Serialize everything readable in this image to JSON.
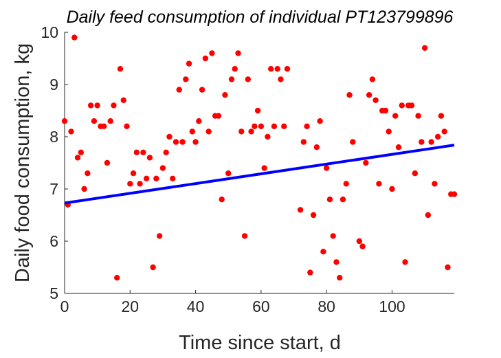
{
  "chart_data": {
    "type": "scatter",
    "title": "Daily feed consumption of individual PT123799896",
    "xlabel": "Time since start, d",
    "ylabel": "Daily food consumption, kg",
    "xlim": [
      0,
      119
    ],
    "ylim": [
      5,
      10
    ],
    "xticks": [
      0,
      20,
      40,
      60,
      80,
      100
    ],
    "yticks": [
      5,
      6,
      7,
      8,
      9,
      10
    ],
    "grid": false,
    "colors": {
      "points": "#ff0000",
      "trend": "#0000ff",
      "axes": "#262626"
    },
    "series": [
      {
        "type": "scatter",
        "x": [
          0,
          1,
          2,
          3,
          4,
          5,
          6,
          7,
          8,
          9,
          10,
          11,
          12,
          13,
          14,
          15,
          16,
          17,
          18,
          19,
          20,
          21,
          22,
          23,
          24,
          25,
          26,
          27,
          28,
          29,
          30,
          31,
          32,
          33,
          34,
          35,
          36,
          37,
          38,
          39,
          40,
          41,
          42,
          43,
          44,
          45,
          46,
          47,
          48,
          49,
          50,
          51,
          52,
          53,
          54,
          55,
          56,
          57,
          58,
          59,
          60,
          61,
          62,
          63,
          64,
          65,
          66,
          67,
          68,
          72,
          73,
          74,
          75,
          76,
          77,
          78,
          79,
          80,
          81,
          82,
          83,
          84,
          85,
          86,
          87,
          88,
          90,
          91,
          92,
          93,
          94,
          95,
          96,
          97,
          98,
          99,
          100,
          101,
          102,
          103,
          104,
          105,
          106,
          107,
          108,
          109,
          110,
          111,
          112,
          113,
          114,
          115,
          116,
          117,
          118,
          119
        ],
        "y": [
          8.3,
          6.7,
          8.1,
          9.9,
          7.6,
          7.7,
          7.0,
          7.3,
          8.6,
          8.3,
          8.6,
          8.2,
          8.2,
          7.5,
          8.3,
          8.6,
          5.3,
          9.3,
          8.7,
          8.2,
          7.1,
          7.3,
          7.7,
          7.1,
          7.7,
          7.2,
          7.6,
          5.5,
          7.2,
          6.1,
          7.4,
          7.7,
          8.0,
          7.2,
          7.9,
          8.9,
          7.9,
          9.1,
          9.4,
          8.1,
          7.9,
          8.3,
          8.9,
          9.5,
          8.1,
          9.6,
          8.4,
          8.4,
          6.8,
          8.8,
          7.3,
          9.1,
          9.3,
          9.6,
          8.1,
          6.1,
          9.1,
          8.1,
          8.2,
          8.5,
          8.2,
          7.4,
          8.0,
          9.3,
          8.2,
          9.3,
          9.1,
          8.2,
          9.3,
          6.6,
          7.9,
          8.2,
          5.4,
          6.5,
          7.8,
          8.3,
          5.8,
          7.4,
          6.8,
          6.1,
          5.6,
          5.3,
          6.8,
          7.1,
          8.8,
          7.9,
          6.0,
          5.9,
          7.5,
          8.8,
          9.1,
          8.7,
          7.1,
          8.5,
          8.5,
          8.1,
          7.0,
          8.4,
          7.8,
          8.6,
          5.6,
          8.6,
          8.6,
          7.3,
          8.4,
          7.9,
          9.7,
          6.5,
          7.9,
          7.1,
          8.0,
          8.4,
          8.1,
          5.5,
          6.9,
          6.9
        ]
      },
      {
        "type": "line",
        "x": [
          0,
          119
        ],
        "y": [
          6.73,
          7.84
        ]
      }
    ]
  }
}
